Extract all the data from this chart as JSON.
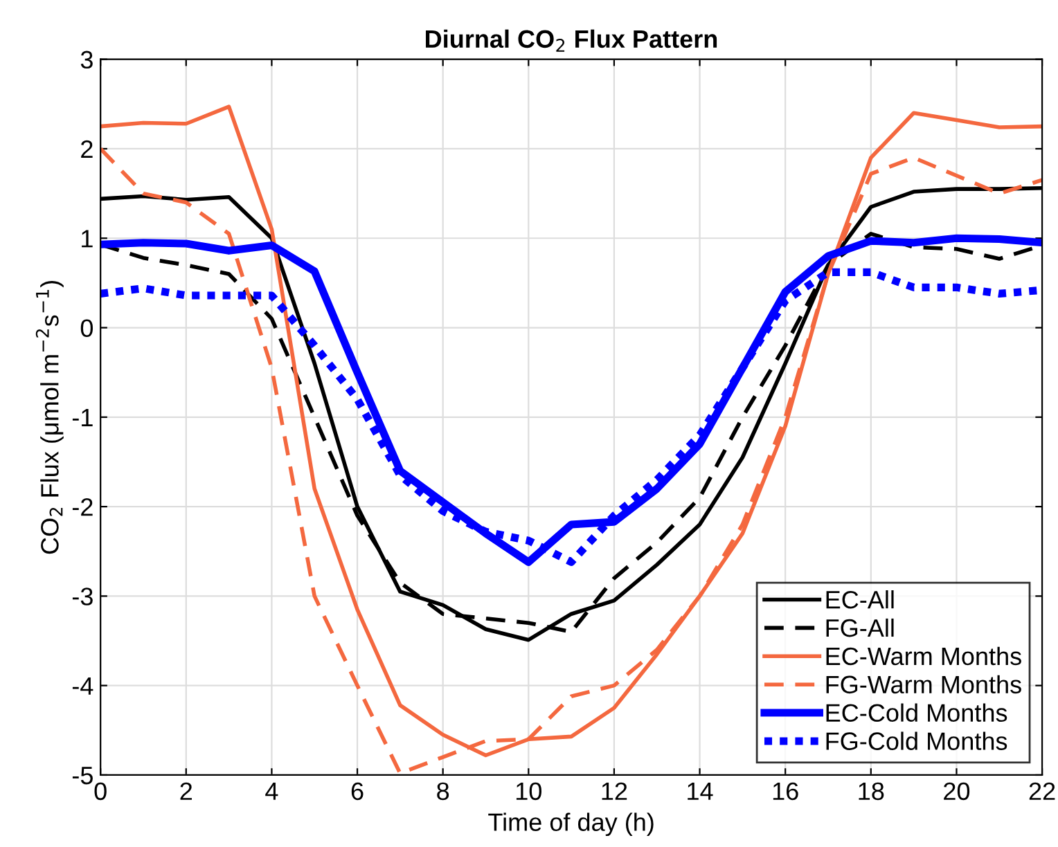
{
  "chart_data": {
    "type": "line",
    "title": "Diurnal CO$_{2}$ Flux Pattern",
    "xlabel": "Time of day (h)",
    "ylabel": "CO$_{2}$ Flux (μmol m$^{−2}$s$^{−1}$)",
    "x": [
      0,
      1,
      2,
      3,
      4,
      5,
      6,
      7,
      8,
      9,
      10,
      11,
      12,
      13,
      14,
      15,
      16,
      17,
      18,
      19,
      20,
      21,
      22
    ],
    "series": [
      {
        "name": "EC-All",
        "color": "#000000",
        "line_style": "solid",
        "values": [
          1.44,
          1.47,
          1.43,
          1.46,
          1.0,
          -0.4,
          -2.0,
          -2.95,
          -3.1,
          -3.37,
          -3.49,
          -3.2,
          -3.05,
          -2.65,
          -2.2,
          -1.45,
          -0.4,
          0.7,
          1.35,
          1.52,
          1.55,
          1.55,
          1.56
        ]
      },
      {
        "name": "FG-All",
        "color": "#000000",
        "line_style": "dashed",
        "values": [
          0.93,
          0.78,
          0.7,
          0.6,
          0.1,
          -1.0,
          -2.1,
          -2.85,
          -3.2,
          -3.25,
          -3.3,
          -3.4,
          -2.8,
          -2.4,
          -1.9,
          -1.0,
          -0.2,
          0.7,
          1.05,
          0.9,
          0.88,
          0.77,
          0.92
        ]
      },
      {
        "name": "EC-Warm Months",
        "color": "#f4683f",
        "line_style": "solid",
        "values": [
          2.25,
          2.29,
          2.28,
          2.47,
          1.1,
          -1.8,
          -3.15,
          -4.22,
          -4.55,
          -4.78,
          -4.6,
          -4.57,
          -4.25,
          -3.65,
          -3.0,
          -2.3,
          -1.1,
          0.6,
          1.9,
          2.4,
          2.32,
          2.24,
          2.25
        ]
      },
      {
        "name": "FG-Warm Months",
        "color": "#f4683f",
        "line_style": "dashed",
        "values": [
          2.0,
          1.5,
          1.4,
          1.05,
          -0.45,
          -3.0,
          -4.0,
          -4.98,
          -4.8,
          -4.62,
          -4.6,
          -4.12,
          -4.0,
          -3.6,
          -3.0,
          -2.2,
          -1.0,
          0.6,
          1.72,
          1.9,
          1.7,
          1.5,
          1.65
        ]
      },
      {
        "name": "EC-Cold Months",
        "color": "#0000ff",
        "line_style": "solid",
        "values": [
          0.93,
          0.95,
          0.94,
          0.86,
          0.92,
          0.63,
          -0.5,
          -1.6,
          -1.95,
          -2.3,
          -2.62,
          -2.2,
          -2.17,
          -1.8,
          -1.3,
          -0.45,
          0.4,
          0.8,
          0.97,
          0.95,
          1.0,
          0.99,
          0.95
        ]
      },
      {
        "name": "FG-Cold Months",
        "color": "#0000ff",
        "line_style": "dotted",
        "values": [
          0.38,
          0.44,
          0.36,
          0.36,
          0.36,
          -0.2,
          -0.8,
          -1.65,
          -2.05,
          -2.28,
          -2.38,
          -2.62,
          -2.1,
          -1.7,
          -1.2,
          -0.45,
          0.3,
          0.62,
          0.62,
          0.45,
          0.45,
          0.38,
          0.42
        ]
      }
    ],
    "xlim": [
      0,
      22
    ],
    "ylim": [
      -5,
      3
    ],
    "xticks": [
      0,
      2,
      4,
      6,
      8,
      10,
      12,
      14,
      16,
      18,
      20,
      22
    ],
    "yticks": [
      -5,
      -4,
      -3,
      -2,
      -1,
      0,
      1,
      2,
      3
    ],
    "grid": true,
    "legend": "bottom right"
  }
}
